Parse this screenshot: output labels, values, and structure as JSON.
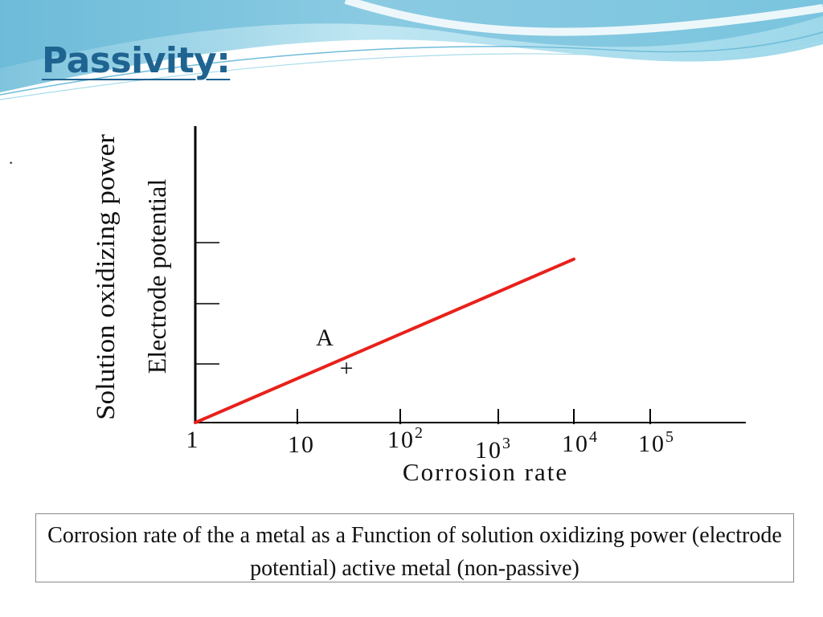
{
  "slide": {
    "title": "Passivity:",
    "bullet": "·",
    "caption": "Corrosion rate of the a metal as a Function of solution oxidizing power (electrode potential) active metal (non-passive)",
    "colors": {
      "title": "#1F6391",
      "banner_light": "#CFEFF7",
      "banner_mid": "#8ED3E8",
      "banner_dark": "#4FA9CF",
      "line": "#E8211B",
      "axis": "#000000"
    }
  },
  "chart_data": {
    "type": "line",
    "ylabel_lines": [
      "Solution oxidizing power",
      "Electrode potential"
    ],
    "xlabel": "Corrosion rate",
    "x_scale": "log",
    "x_ticks": [
      {
        "value": 1,
        "base": "1",
        "exp": ""
      },
      {
        "value": 10,
        "base": "10",
        "exp": ""
      },
      {
        "value": 100,
        "base": "10",
        "exp": "2"
      },
      {
        "value": 1000,
        "base": "10",
        "exp": "3"
      },
      {
        "value": 10000,
        "base": "10",
        "exp": "4"
      },
      {
        "value": 100000,
        "base": "10",
        "exp": "5"
      }
    ],
    "y_ticks_count": 3,
    "grid": false,
    "series": [
      {
        "x": [
          1,
          10000
        ],
        "y": [
          0,
          0.9
        ]
      }
    ],
    "annotations": [
      {
        "text": "A",
        "marker": "+",
        "x": 30,
        "y": 0.3
      }
    ]
  }
}
